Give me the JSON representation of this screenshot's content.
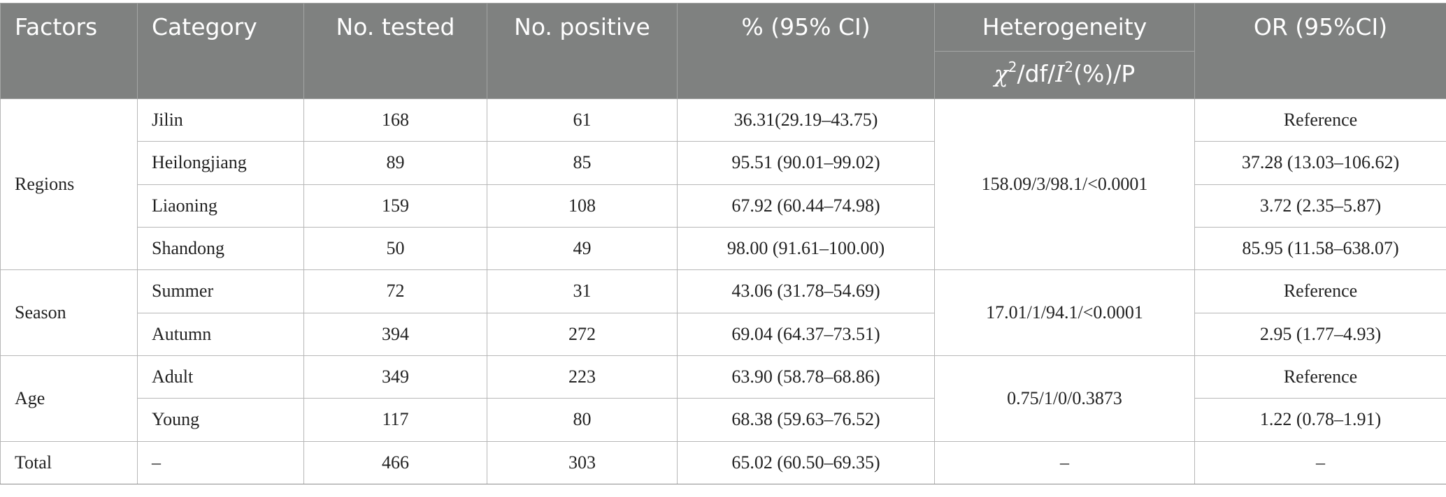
{
  "header": {
    "factors": "Factors",
    "category": "Category",
    "tested": "No. tested",
    "positive": "No. positive",
    "percent_ci": "% (95% CI)",
    "heterogeneity": "Heterogeneity",
    "het_sub": {
      "chi": "χ",
      "sup1": "2",
      "mid": "/df/",
      "i": "I",
      "sup2": "2",
      "tail": "(%)/P"
    },
    "or_ci": "OR (95%CI)"
  },
  "groups": {
    "regions": {
      "factor": "Regions",
      "heterogeneity": "158.09/3/98.1/<0.0001",
      "rows": [
        {
          "category": "Jilin",
          "tested": "168",
          "positive": "61",
          "percent_ci": "36.31(29.19–43.75)",
          "or_ci": "Reference"
        },
        {
          "category": "Heilongjiang",
          "tested": "89",
          "positive": "85",
          "percent_ci": "95.51 (90.01–99.02)",
          "or_ci": "37.28 (13.03–106.62)"
        },
        {
          "category": "Liaoning",
          "tested": "159",
          "positive": "108",
          "percent_ci": "67.92 (60.44–74.98)",
          "or_ci": "3.72 (2.35–5.87)"
        },
        {
          "category": "Shandong",
          "tested": "50",
          "positive": "49",
          "percent_ci": "98.00 (91.61–100.00)",
          "or_ci": "85.95 (11.58–638.07)"
        }
      ]
    },
    "season": {
      "factor": "Season",
      "heterogeneity": "17.01/1/94.1/<0.0001",
      "rows": [
        {
          "category": "Summer",
          "tested": "72",
          "positive": "31",
          "percent_ci": "43.06 (31.78–54.69)",
          "or_ci": "Reference"
        },
        {
          "category": "Autumn",
          "tested": "394",
          "positive": "272",
          "percent_ci": "69.04 (64.37–73.51)",
          "or_ci": "2.95 (1.77–4.93)"
        }
      ]
    },
    "age": {
      "factor": "Age",
      "heterogeneity": "0.75/1/0/0.3873",
      "rows": [
        {
          "category": "Adult",
          "tested": "349",
          "positive": "223",
          "percent_ci": "63.90 (58.78–68.86)",
          "or_ci": "Reference"
        },
        {
          "category": "Young",
          "tested": "117",
          "positive": "80",
          "percent_ci": "68.38 (59.63–76.52)",
          "or_ci": "1.22 (0.78–1.91)"
        }
      ]
    }
  },
  "total": {
    "factor": "Total",
    "category": "–",
    "tested": "466",
    "positive": "303",
    "percent_ci": "65.02 (60.50–69.35)",
    "heterogeneity": "–",
    "or_ci": "–"
  },
  "colors": {
    "header_bg": "#7f8180",
    "header_text": "#ffffff",
    "border": "#b7b7b7"
  }
}
